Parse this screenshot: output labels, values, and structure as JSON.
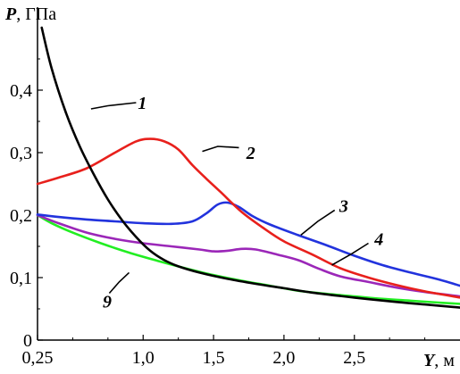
{
  "chart_data": {
    "type": "line",
    "ylabel_var": "P",
    "ylabel_unit": ", ГПа",
    "xlabel_var": "Y",
    "xlabel_unit": ", м",
    "xlim": [
      0.25,
      3.25
    ],
    "ylim": [
      0,
      0.5
    ],
    "x_ticks": [
      {
        "v": 0.25,
        "label": "0,25"
      },
      {
        "v": 1.0,
        "label": "1,0"
      },
      {
        "v": 1.5,
        "label": "1,5"
      },
      {
        "v": 2.0,
        "label": "2,0"
      },
      {
        "v": 2.5,
        "label": "2,5"
      }
    ],
    "y_ticks": [
      {
        "v": 0,
        "label": "0"
      },
      {
        "v": 0.1,
        "label": "0,1"
      },
      {
        "v": 0.2,
        "label": "0,2"
      },
      {
        "v": 0.3,
        "label": "0,3"
      },
      {
        "v": 0.4,
        "label": "0,4"
      }
    ],
    "series": [
      {
        "name": "1",
        "color": "#000000",
        "label_pos": [
          0.95,
          0.38
        ],
        "leader": [
          [
            0.95,
            0.38
          ],
          [
            0.75,
            0.375
          ],
          [
            0.63,
            0.37
          ]
        ],
        "points": [
          [
            0.28,
            0.5
          ],
          [
            0.35,
            0.435
          ],
          [
            0.45,
            0.365
          ],
          [
            0.55,
            0.31
          ],
          [
            0.65,
            0.265
          ],
          [
            0.75,
            0.225
          ],
          [
            0.85,
            0.192
          ],
          [
            0.95,
            0.165
          ],
          [
            1.05,
            0.143
          ],
          [
            1.15,
            0.128
          ],
          [
            1.25,
            0.118
          ],
          [
            1.4,
            0.108
          ],
          [
            1.6,
            0.098
          ],
          [
            1.8,
            0.09
          ],
          [
            2.0,
            0.083
          ],
          [
            2.2,
            0.076
          ],
          [
            2.5,
            0.068
          ],
          [
            2.8,
            0.061
          ],
          [
            3.0,
            0.057
          ],
          [
            3.25,
            0.052
          ]
        ]
      },
      {
        "name": "2",
        "color": "#e8201c",
        "label_pos": [
          1.72,
          0.3
        ],
        "leader": [
          [
            1.68,
            0.308
          ],
          [
            1.53,
            0.31
          ],
          [
            1.42,
            0.302
          ]
        ],
        "points": [
          [
            0.25,
            0.25
          ],
          [
            0.4,
            0.26
          ],
          [
            0.6,
            0.275
          ],
          [
            0.8,
            0.3
          ],
          [
            0.95,
            0.318
          ],
          [
            1.05,
            0.322
          ],
          [
            1.15,
            0.318
          ],
          [
            1.25,
            0.305
          ],
          [
            1.35,
            0.28
          ],
          [
            1.45,
            0.258
          ],
          [
            1.55,
            0.237
          ],
          [
            1.7,
            0.205
          ],
          [
            1.85,
            0.18
          ],
          [
            2.0,
            0.158
          ],
          [
            2.2,
            0.137
          ],
          [
            2.4,
            0.115
          ],
          [
            2.6,
            0.1
          ],
          [
            2.8,
            0.088
          ],
          [
            3.0,
            0.078
          ],
          [
            3.25,
            0.068
          ]
        ]
      },
      {
        "name": "3",
        "color": "#2233dd",
        "label_pos": [
          2.38,
          0.215
        ],
        "leader": [
          [
            2.36,
            0.208
          ],
          [
            2.24,
            0.19
          ],
          [
            2.12,
            0.168
          ]
        ],
        "points": [
          [
            0.25,
            0.201
          ],
          [
            0.4,
            0.197
          ],
          [
            0.6,
            0.193
          ],
          [
            0.8,
            0.19
          ],
          [
            1.0,
            0.187
          ],
          [
            1.2,
            0.186
          ],
          [
            1.35,
            0.19
          ],
          [
            1.45,
            0.203
          ],
          [
            1.53,
            0.217
          ],
          [
            1.6,
            0.22
          ],
          [
            1.68,
            0.213
          ],
          [
            1.78,
            0.198
          ],
          [
            1.9,
            0.185
          ],
          [
            2.1,
            0.168
          ],
          [
            2.3,
            0.152
          ],
          [
            2.5,
            0.135
          ],
          [
            2.7,
            0.12
          ],
          [
            2.9,
            0.108
          ],
          [
            3.1,
            0.097
          ],
          [
            3.25,
            0.087
          ]
        ]
      },
      {
        "name": "4",
        "color": "#9b27b8",
        "label_pos": [
          2.63,
          0.162
        ],
        "leader": [
          [
            2.6,
            0.155
          ],
          [
            2.48,
            0.138
          ],
          [
            2.34,
            0.12
          ]
        ],
        "points": [
          [
            0.25,
            0.2
          ],
          [
            0.4,
            0.187
          ],
          [
            0.6,
            0.172
          ],
          [
            0.8,
            0.162
          ],
          [
            1.0,
            0.155
          ],
          [
            1.2,
            0.15
          ],
          [
            1.4,
            0.145
          ],
          [
            1.5,
            0.142
          ],
          [
            1.6,
            0.143
          ],
          [
            1.7,
            0.146
          ],
          [
            1.8,
            0.145
          ],
          [
            1.95,
            0.137
          ],
          [
            2.1,
            0.128
          ],
          [
            2.25,
            0.114
          ],
          [
            2.4,
            0.102
          ],
          [
            2.6,
            0.093
          ],
          [
            2.8,
            0.084
          ],
          [
            3.0,
            0.077
          ],
          [
            3.25,
            0.07
          ]
        ]
      },
      {
        "name": "9",
        "color": "#22ee22",
        "label_pos": [
          0.7,
          0.062
        ],
        "leader": [
          [
            0.76,
            0.075
          ],
          [
            0.83,
            0.093
          ],
          [
            0.9,
            0.108
          ]
        ],
        "points": [
          [
            0.25,
            0.2
          ],
          [
            0.35,
            0.187
          ],
          [
            0.5,
            0.172
          ],
          [
            0.7,
            0.155
          ],
          [
            0.9,
            0.14
          ],
          [
            1.1,
            0.127
          ],
          [
            1.3,
            0.115
          ],
          [
            1.5,
            0.104
          ],
          [
            1.7,
            0.095
          ],
          [
            1.9,
            0.087
          ],
          [
            2.1,
            0.079
          ],
          [
            2.3,
            0.074
          ],
          [
            2.5,
            0.07
          ],
          [
            2.7,
            0.066
          ],
          [
            2.9,
            0.063
          ],
          [
            3.1,
            0.06
          ],
          [
            3.25,
            0.058
          ]
        ]
      }
    ]
  }
}
